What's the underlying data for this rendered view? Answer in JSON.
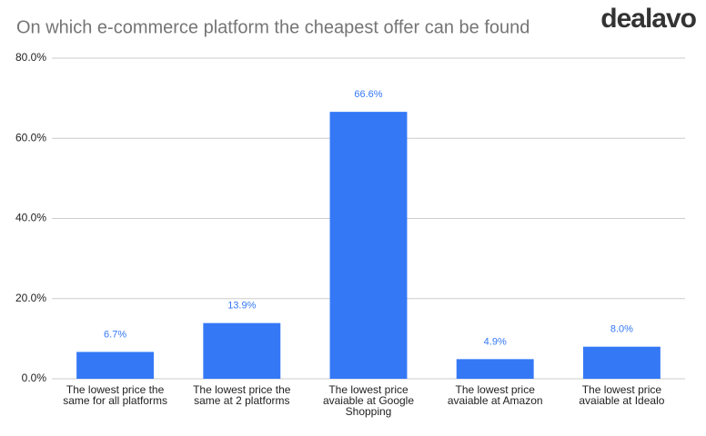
{
  "chart_data": {
    "type": "bar",
    "title": "On which e-commerce platform the cheapest offer can be found",
    "logo": "dealavo",
    "categories": [
      "The lowest price the same for all platforms",
      "The lowest price the same at 2 platforms",
      "The lowest price avaiable at Google Shopping",
      "The lowest price avaiable at Amazon",
      "The lowest price avaiable at Idealo"
    ],
    "values": [
      6.7,
      13.9,
      66.6,
      4.9,
      8.0
    ],
    "value_labels": [
      "6.7%",
      "13.9%",
      "66.6%",
      "4.9%",
      "8.0%"
    ],
    "color": "#3478f6",
    "ylim": [
      0,
      80
    ],
    "yticks": [
      {
        "value": 0,
        "label": "0.0%"
      },
      {
        "value": 20,
        "label": "20.0%"
      },
      {
        "value": 40,
        "label": "40.0%"
      },
      {
        "value": 60,
        "label": "60.0%"
      },
      {
        "value": 80,
        "label": "80.0%"
      }
    ],
    "grid": true
  }
}
